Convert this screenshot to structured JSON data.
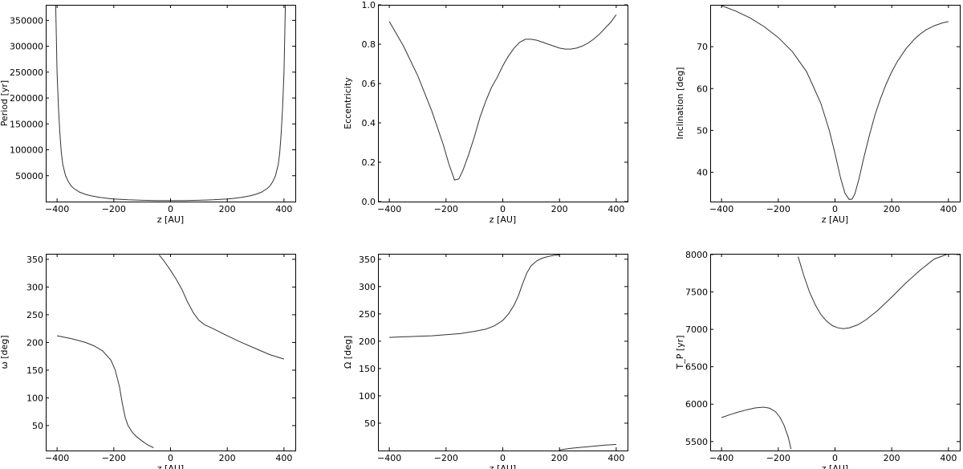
{
  "chart_data": [
    {
      "type": "line",
      "xlabel": "z [AU]",
      "ylabel": "Period [yr]",
      "xlim": [
        -440,
        440
      ],
      "ylim": [
        0,
        380000
      ],
      "xticks": [
        -400,
        -200,
        0,
        200,
        400
      ],
      "xtick_labels": [
        "−400",
        "−200",
        "0",
        "200",
        "400"
      ],
      "yticks": [
        50000,
        100000,
        150000,
        200000,
        250000,
        300000,
        350000
      ],
      "ytick_labels": [
        "50000",
        "100000",
        "150000",
        "200000",
        "250000",
        "300000",
        "350000"
      ],
      "series": [
        {
          "x": [
            -405,
            -400,
            -395,
            -390,
            -385,
            -380,
            -370,
            -360,
            -350,
            -340,
            -320,
            -300,
            -280,
            -250,
            -220,
            -200,
            -150,
            -100,
            -50,
            0,
            50,
            100,
            150,
            200,
            220,
            250,
            280,
            300,
            320,
            340,
            350,
            360,
            370,
            380,
            385,
            390,
            395,
            400,
            405
          ],
          "y": [
            380000,
            250000,
            180000,
            130000,
            95000,
            72000,
            50000,
            38000,
            30000,
            25000,
            18000,
            14000,
            11000,
            8000,
            6000,
            5000,
            3400,
            2500,
            2050,
            2000,
            2050,
            2500,
            3400,
            5000,
            6000,
            8000,
            11000,
            14000,
            18000,
            25000,
            30000,
            38000,
            50000,
            72000,
            95000,
            130000,
            180000,
            250000,
            380000
          ]
        }
      ]
    },
    {
      "type": "line",
      "xlabel": "z [AU]",
      "ylabel": "Eccentricity",
      "xlim": [
        -440,
        440
      ],
      "ylim": [
        0,
        1.0
      ],
      "xticks": [
        -400,
        -200,
        0,
        200,
        400
      ],
      "xtick_labels": [
        "−400",
        "−200",
        "0",
        "200",
        "400"
      ],
      "yticks": [
        0.0,
        0.2,
        0.4,
        0.6,
        0.8,
        1.0
      ],
      "ytick_labels": [
        "0.0",
        "0.2",
        "0.4",
        "0.6",
        "0.8",
        "1.0"
      ],
      "series": [
        {
          "x": [
            -400,
            -350,
            -300,
            -250,
            -210,
            -190,
            -170,
            -155,
            -140,
            -120,
            -100,
            -80,
            -60,
            -40,
            -20,
            0,
            20,
            40,
            60,
            80,
            100,
            120,
            140,
            160,
            180,
            200,
            220,
            240,
            260,
            280,
            300,
            320,
            340,
            360,
            380,
            400
          ],
          "y": [
            0.915,
            0.79,
            0.64,
            0.46,
            0.29,
            0.19,
            0.11,
            0.115,
            0.16,
            0.24,
            0.33,
            0.43,
            0.51,
            0.58,
            0.63,
            0.69,
            0.74,
            0.78,
            0.81,
            0.825,
            0.825,
            0.82,
            0.81,
            0.8,
            0.79,
            0.78,
            0.775,
            0.775,
            0.78,
            0.79,
            0.805,
            0.825,
            0.85,
            0.88,
            0.91,
            0.95
          ]
        }
      ]
    },
    {
      "type": "line",
      "xlabel": "z [AU]",
      "ylabel": "Inclination [deg]",
      "xlim": [
        -440,
        440
      ],
      "ylim": [
        33,
        80
      ],
      "xticks": [
        -400,
        -200,
        0,
        200,
        400
      ],
      "xtick_labels": [
        "−400",
        "−200",
        "0",
        "200",
        "400"
      ],
      "yticks": [
        40,
        50,
        60,
        70
      ],
      "ytick_labels": [
        "40",
        "50",
        "60",
        "70"
      ],
      "series": [
        {
          "x": [
            -400,
            -350,
            -300,
            -250,
            -200,
            -150,
            -100,
            -50,
            -20,
            0,
            20,
            35,
            50,
            60,
            70,
            85,
            100,
            120,
            140,
            160,
            180,
            200,
            220,
            250,
            280,
            300,
            320,
            350,
            380,
            400
          ],
          "y": [
            79.8,
            78.5,
            76.9,
            74.8,
            72.2,
            68.8,
            64.0,
            56.5,
            50.0,
            44.5,
            38.5,
            35.0,
            33.5,
            33.6,
            34.8,
            38.5,
            43.0,
            48.5,
            53.5,
            57.5,
            61.0,
            64.0,
            66.5,
            69.5,
            71.8,
            73.0,
            74.0,
            75.0,
            75.7,
            76.0
          ]
        }
      ]
    },
    {
      "type": "line",
      "xlabel": "z [AU]",
      "ylabel": "ω [deg]",
      "xlim": [
        -440,
        440
      ],
      "ylim": [
        5,
        360
      ],
      "xticks": [
        -400,
        -200,
        0,
        200,
        400
      ],
      "xtick_labels": [
        "−400",
        "−200",
        "0",
        "200",
        "400"
      ],
      "yticks": [
        50,
        100,
        150,
        200,
        250,
        300,
        350
      ],
      "ytick_labels": [
        "50",
        "100",
        "150",
        "200",
        "250",
        "300",
        "350"
      ],
      "series": [
        {
          "x": [
            -400,
            -350,
            -300,
            -270,
            -240,
            -210,
            -195,
            -180,
            -170,
            -160,
            -150,
            -135,
            -120,
            -100,
            -80,
            -60
          ],
          "y": [
            212,
            207,
            200,
            194,
            185,
            168,
            150,
            120,
            90,
            65,
            50,
            38,
            30,
            22,
            15,
            10
          ]
        },
        {
          "x": [
            -40,
            -20,
            0,
            20,
            40,
            60,
            80,
            100,
            120,
            150,
            200,
            250,
            300,
            350,
            400
          ],
          "y": [
            358,
            345,
            330,
            314,
            296,
            273,
            254,
            240,
            232,
            225,
            212,
            200,
            189,
            178,
            170
          ]
        }
      ]
    },
    {
      "type": "line",
      "xlabel": "z [AU]",
      "ylabel": "Ω [deg]",
      "xlim": [
        -440,
        440
      ],
      "ylim": [
        0,
        360
      ],
      "xticks": [
        -400,
        -200,
        0,
        200,
        400
      ],
      "xtick_labels": [
        "−400",
        "−200",
        "0",
        "200",
        "400"
      ],
      "yticks": [
        50,
        100,
        150,
        200,
        250,
        300,
        350
      ],
      "ytick_labels": [
        "50",
        "100",
        "150",
        "200",
        "250",
        "300",
        "350"
      ],
      "series": [
        {
          "x": [
            -400,
            -350,
            -300,
            -250,
            -200,
            -150,
            -100,
            -60,
            -30,
            0,
            20,
            40,
            55,
            70,
            85,
            100,
            120,
            140,
            160,
            180,
            200
          ],
          "y": [
            207,
            208,
            209,
            210,
            212,
            214,
            218,
            222,
            228,
            238,
            250,
            266,
            283,
            305,
            325,
            338,
            347,
            352,
            355,
            357,
            358
          ]
        },
        {
          "x": [
            200,
            240,
            280,
            320,
            360,
            400
          ],
          "y": [
            1,
            4,
            6,
            8,
            10,
            11
          ]
        }
      ]
    },
    {
      "type": "line",
      "xlabel": "z [AU]",
      "ylabel": "T_P [yr]",
      "xlim": [
        -440,
        440
      ],
      "ylim": [
        5380,
        8010
      ],
      "xticks": [
        -400,
        -200,
        0,
        200,
        400
      ],
      "xtick_labels": [
        "−400",
        "−200",
        "0",
        "200",
        "400"
      ],
      "yticks": [
        5500,
        6000,
        6500,
        7000,
        7500,
        8000
      ],
      "ytick_labels": [
        "5500",
        "6000",
        "6500",
        "7000",
        "7500",
        "8000"
      ],
      "series": [
        {
          "x": [
            -400,
            -370,
            -340,
            -310,
            -280,
            -250,
            -230,
            -210,
            -195,
            -180,
            -165,
            -155
          ],
          "y": [
            5820,
            5860,
            5895,
            5925,
            5950,
            5960,
            5945,
            5900,
            5830,
            5720,
            5560,
            5400
          ]
        },
        {
          "x": [
            -130,
            -110,
            -90,
            -70,
            -50,
            -30,
            -10,
            10,
            30,
            50,
            80,
            110,
            150,
            200,
            250,
            300,
            350,
            400
          ],
          "y": [
            7970,
            7720,
            7500,
            7330,
            7200,
            7110,
            7050,
            7020,
            7010,
            7020,
            7060,
            7130,
            7250,
            7430,
            7620,
            7790,
            7940,
            8010
          ]
        }
      ]
    }
  ]
}
